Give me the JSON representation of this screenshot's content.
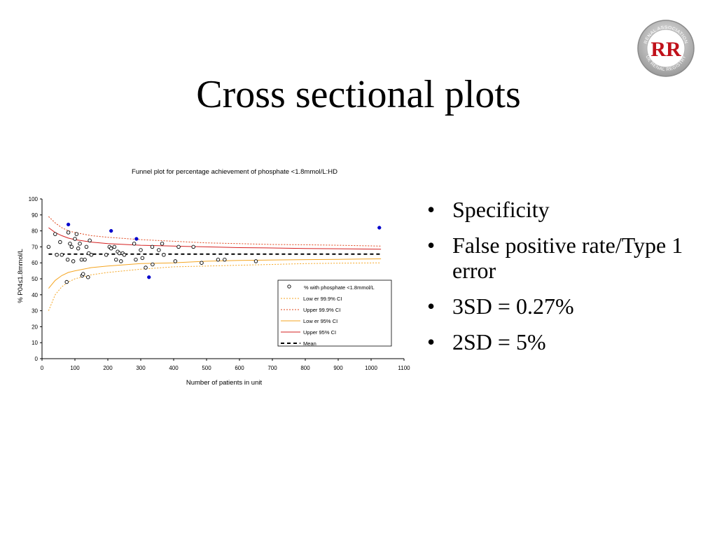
{
  "slide": {
    "title": "Cross sectional plots",
    "logo_text": "RR",
    "logo_ring_top": "RENAL ASSOCIATION",
    "logo_ring_bottom": "UK RENAL REGISTRY",
    "bullet_glyph": "•",
    "bullets": [
      "Specificity",
      "False positive rate/Type 1 error",
      "3SD = 0.27%",
      "2SD = 5%"
    ]
  },
  "chart_data": {
    "type": "scatter",
    "title": "Funnel plot for percentage achievement of phosphate <1.8mmol/L:HD",
    "xlabel": "Number of patients in unit",
    "ylabel": "% P04≤1.8mmol/L",
    "xlim": [
      0,
      1100
    ],
    "ylim": [
      0,
      100
    ],
    "xticks": [
      0,
      100,
      200,
      300,
      400,
      500,
      600,
      700,
      800,
      900,
      1000,
      1100
    ],
    "yticks": [
      0,
      10,
      20,
      30,
      40,
      50,
      60,
      70,
      80,
      90,
      100
    ],
    "grid": false,
    "legend_position": "lower-right",
    "mean": 65.5,
    "colors": {
      "points": "#000000",
      "outliers": "#0000cc",
      "ci95": "#f5a623",
      "ci999": "#e0451a",
      "upper95": "#d62020",
      "mean": "#000000"
    },
    "series": [
      {
        "name": "% with phosphate <1.8mmol/L",
        "style": "marker",
        "points": [
          [
            20,
            70
          ],
          [
            40,
            78
          ],
          [
            45,
            65
          ],
          [
            55,
            73
          ],
          [
            60,
            65
          ],
          [
            75,
            48
          ],
          [
            78,
            62
          ],
          [
            80,
            79
          ],
          [
            85,
            72
          ],
          [
            90,
            70
          ],
          [
            95,
            61
          ],
          [
            100,
            75
          ],
          [
            105,
            78
          ],
          [
            110,
            69
          ],
          [
            115,
            72
          ],
          [
            120,
            62
          ],
          [
            122,
            52
          ],
          [
            125,
            53
          ],
          [
            130,
            62
          ],
          [
            135,
            70
          ],
          [
            140,
            51
          ],
          [
            142,
            66
          ],
          [
            145,
            74
          ],
          [
            150,
            65
          ],
          [
            195,
            65
          ],
          [
            205,
            70
          ],
          [
            210,
            69
          ],
          [
            220,
            70
          ],
          [
            225,
            62
          ],
          [
            230,
            67
          ],
          [
            235,
            66
          ],
          [
            240,
            61
          ],
          [
            245,
            66
          ],
          [
            250,
            65
          ],
          [
            280,
            72
          ],
          [
            285,
            62
          ],
          [
            300,
            68
          ],
          [
            305,
            63
          ],
          [
            315,
            57
          ],
          [
            335,
            70
          ],
          [
            336,
            59
          ],
          [
            355,
            68
          ],
          [
            365,
            72
          ],
          [
            370,
            65
          ],
          [
            405,
            61
          ],
          [
            415,
            70
          ],
          [
            460,
            70
          ],
          [
            485,
            60
          ],
          [
            535,
            62
          ],
          [
            555,
            62
          ],
          [
            650,
            61
          ]
        ]
      },
      {
        "name": "outliers",
        "style": "marker-filled",
        "points": [
          [
            80,
            84
          ],
          [
            210,
            80
          ],
          [
            287,
            75
          ],
          [
            325,
            51
          ],
          [
            1025,
            82
          ]
        ]
      },
      {
        "name": "Low er 99.9% CI",
        "style": "dotted",
        "points": [
          [
            20,
            30
          ],
          [
            40,
            40
          ],
          [
            60,
            45
          ],
          [
            80,
            48
          ],
          [
            100,
            50
          ],
          [
            150,
            52.5
          ],
          [
            200,
            54
          ],
          [
            300,
            56
          ],
          [
            400,
            57.5
          ],
          [
            500,
            58
          ],
          [
            600,
            58.5
          ],
          [
            700,
            59
          ],
          [
            800,
            59.5
          ],
          [
            900,
            59.8
          ],
          [
            1030,
            60
          ]
        ]
      },
      {
        "name": "Upper 99.9% CI",
        "style": "dotted",
        "points": [
          [
            20,
            89
          ],
          [
            40,
            85
          ],
          [
            60,
            82
          ],
          [
            80,
            80
          ],
          [
            100,
            79
          ],
          [
            150,
            77
          ],
          [
            200,
            76
          ],
          [
            300,
            74.5
          ],
          [
            400,
            73.5
          ],
          [
            500,
            72.5
          ],
          [
            600,
            72
          ],
          [
            700,
            71.5
          ],
          [
            800,
            71.3
          ],
          [
            900,
            71
          ],
          [
            1030,
            70.5
          ]
        ]
      },
      {
        "name": "Low er 95% CI",
        "style": "solid",
        "points": [
          [
            20,
            44
          ],
          [
            40,
            49
          ],
          [
            60,
            52
          ],
          [
            80,
            54
          ],
          [
            100,
            55
          ],
          [
            150,
            57
          ],
          [
            200,
            58
          ],
          [
            300,
            59.5
          ],
          [
            400,
            60
          ],
          [
            500,
            61
          ],
          [
            600,
            61.5
          ],
          [
            700,
            61.8
          ],
          [
            800,
            62
          ],
          [
            900,
            62.2
          ],
          [
            1030,
            62.5
          ]
        ]
      },
      {
        "name": "Upper 95% CI",
        "style": "solid",
        "points": [
          [
            20,
            82
          ],
          [
            40,
            79
          ],
          [
            60,
            77
          ],
          [
            80,
            75.5
          ],
          [
            100,
            74.5
          ],
          [
            150,
            73
          ],
          [
            200,
            72
          ],
          [
            300,
            71
          ],
          [
            400,
            70.5
          ],
          [
            500,
            70
          ],
          [
            600,
            69.5
          ],
          [
            700,
            69.3
          ],
          [
            800,
            69
          ],
          [
            900,
            68.8
          ],
          [
            1030,
            68.5
          ]
        ]
      },
      {
        "name": "Mean",
        "style": "dashed",
        "points": [
          [
            20,
            65.5
          ],
          [
            1030,
            65.5
          ]
        ]
      }
    ]
  }
}
